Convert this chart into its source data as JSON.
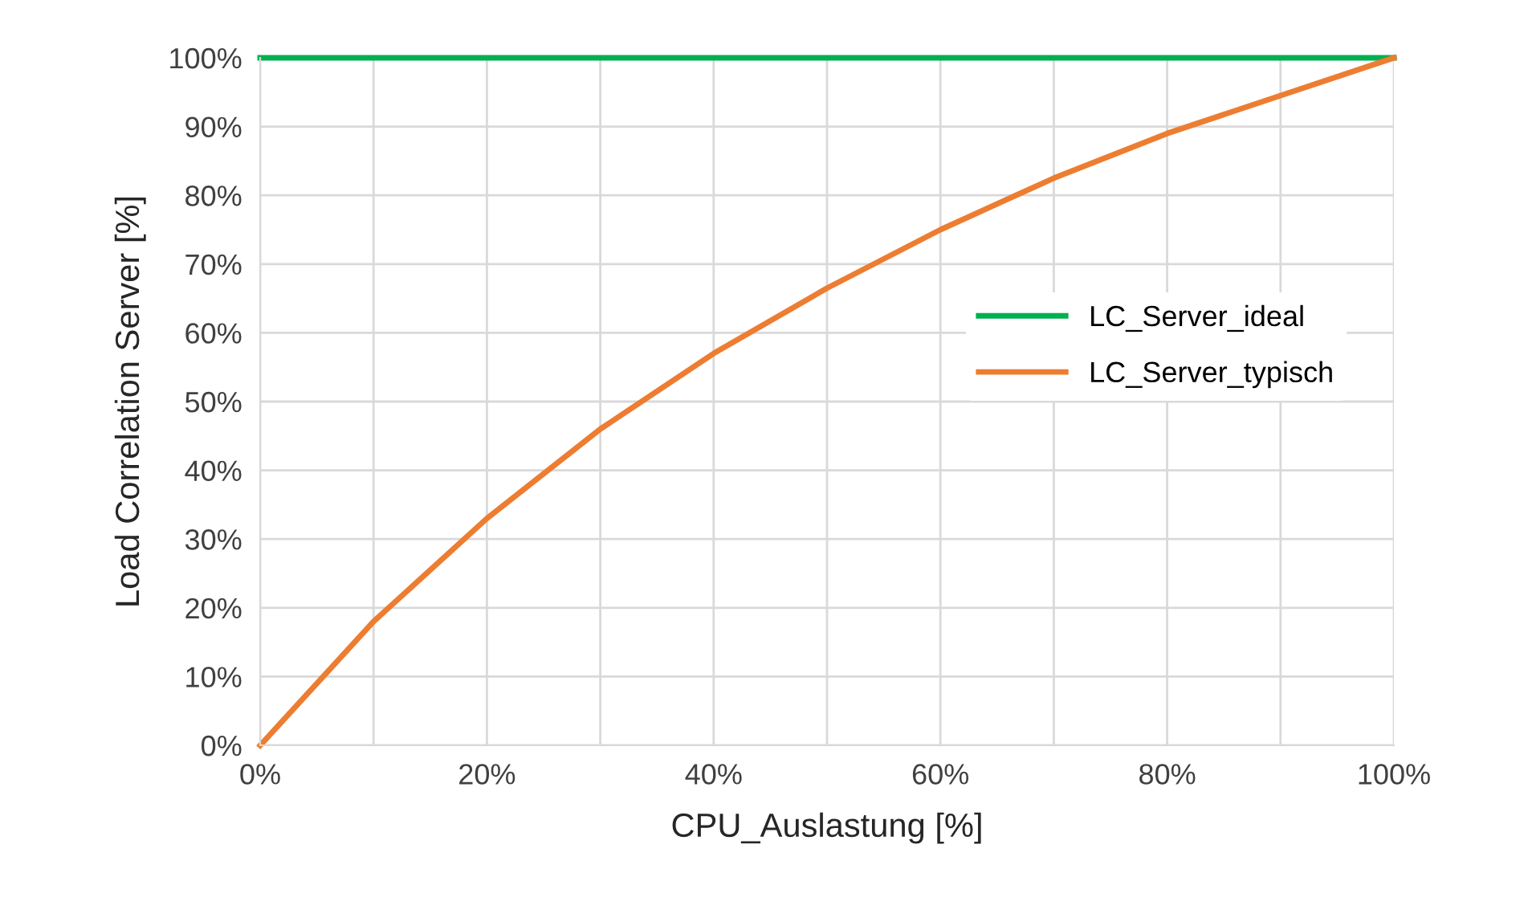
{
  "chart_data": {
    "type": "line",
    "xlabel": "CPU_Auslastung [%]",
    "ylabel": "Load Correlation Server [%]",
    "x": [
      0,
      10,
      20,
      30,
      40,
      50,
      60,
      70,
      80,
      90,
      100
    ],
    "series": [
      {
        "name": "LC_Server_ideal",
        "color": "#00b050",
        "values": [
          100,
          100,
          100,
          100,
          100,
          100,
          100,
          100,
          100,
          100,
          100
        ]
      },
      {
        "name": "LC_Server_typisch",
        "color": "#ed7d31",
        "values": [
          0,
          18,
          33,
          46,
          57,
          66.5,
          75,
          82.5,
          89,
          94.5,
          100
        ]
      }
    ],
    "xlim": [
      0,
      100
    ],
    "ylim": [
      0,
      100
    ],
    "xticks": [
      {
        "value": 0,
        "label": "0%"
      },
      {
        "value": 10,
        "label": null
      },
      {
        "value": 20,
        "label": "20%"
      },
      {
        "value": 30,
        "label": null
      },
      {
        "value": 40,
        "label": "40%"
      },
      {
        "value": 50,
        "label": null
      },
      {
        "value": 60,
        "label": "60%"
      },
      {
        "value": 70,
        "label": null
      },
      {
        "value": 80,
        "label": "80%"
      },
      {
        "value": 90,
        "label": null
      },
      {
        "value": 100,
        "label": "100%"
      }
    ],
    "yticks": [
      {
        "value": 0,
        "label": "0%"
      },
      {
        "value": 10,
        "label": "10%"
      },
      {
        "value": 20,
        "label": "20%"
      },
      {
        "value": 30,
        "label": "30%"
      },
      {
        "value": 40,
        "label": "40%"
      },
      {
        "value": 50,
        "label": "50%"
      },
      {
        "value": 60,
        "label": "60%"
      },
      {
        "value": 70,
        "label": "70%"
      },
      {
        "value": 80,
        "label": "80%"
      },
      {
        "value": 90,
        "label": "90%"
      },
      {
        "value": 100,
        "label": "100%"
      }
    ],
    "grid": true,
    "legend": "right",
    "marker": "none",
    "line_style": "solid"
  }
}
